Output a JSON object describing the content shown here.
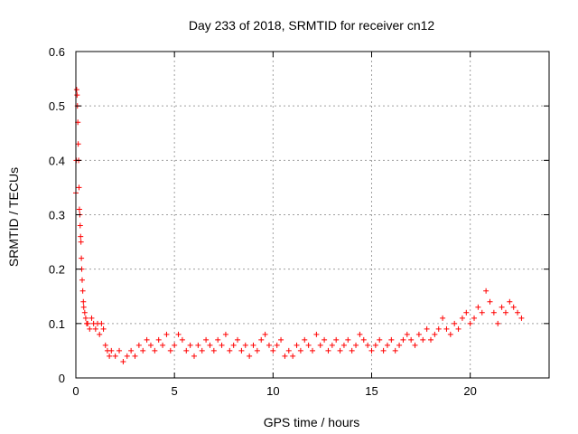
{
  "chart_data": {
    "type": "scatter",
    "title": "Day 233 of 2018, SRMTID for receiver cn12",
    "xlabel": "GPS time / hours",
    "ylabel": "SRMTID / TECUs",
    "xlim": [
      0,
      24
    ],
    "ylim": [
      0,
      0.6
    ],
    "x_ticks": [
      0,
      5,
      10,
      15,
      20
    ],
    "x_tick_labels": [
      "0",
      "5",
      "10",
      "15",
      "20"
    ],
    "y_ticks": [
      0,
      0.1,
      0.2,
      0.3,
      0.4,
      0.5,
      0.6
    ],
    "y_tick_labels": [
      "0",
      "0.1",
      "0.2",
      "0.3",
      "0.4",
      "0.5",
      "0.6"
    ],
    "grid": true,
    "marker": "+",
    "series_color": "#ff0000",
    "series": [
      {
        "name": "SRMTID",
        "points": [
          [
            0.0,
            0.34
          ],
          [
            0.02,
            0.4
          ],
          [
            0.04,
            0.53
          ],
          [
            0.06,
            0.52
          ],
          [
            0.08,
            0.5
          ],
          [
            0.1,
            0.47
          ],
          [
            0.12,
            0.43
          ],
          [
            0.14,
            0.4
          ],
          [
            0.16,
            0.35
          ],
          [
            0.18,
            0.31
          ],
          [
            0.2,
            0.3
          ],
          [
            0.22,
            0.28
          ],
          [
            0.24,
            0.26
          ],
          [
            0.26,
            0.25
          ],
          [
            0.28,
            0.22
          ],
          [
            0.3,
            0.2
          ],
          [
            0.32,
            0.18
          ],
          [
            0.35,
            0.16
          ],
          [
            0.38,
            0.14
          ],
          [
            0.4,
            0.13
          ],
          [
            0.45,
            0.12
          ],
          [
            0.5,
            0.11
          ],
          [
            0.55,
            0.1
          ],
          [
            0.6,
            0.1
          ],
          [
            0.7,
            0.09
          ],
          [
            0.8,
            0.11
          ],
          [
            0.9,
            0.1
          ],
          [
            1.0,
            0.09
          ],
          [
            1.1,
            0.1
          ],
          [
            1.2,
            0.08
          ],
          [
            1.3,
            0.1
          ],
          [
            1.4,
            0.09
          ],
          [
            1.5,
            0.06
          ],
          [
            1.6,
            0.05
          ],
          [
            1.7,
            0.04
          ],
          [
            1.8,
            0.05
          ],
          [
            2.0,
            0.04
          ],
          [
            2.2,
            0.05
          ],
          [
            2.4,
            0.03
          ],
          [
            2.6,
            0.04
          ],
          [
            2.8,
            0.05
          ],
          [
            3.0,
            0.04
          ],
          [
            3.2,
            0.06
          ],
          [
            3.4,
            0.05
          ],
          [
            3.6,
            0.07
          ],
          [
            3.8,
            0.06
          ],
          [
            4.0,
            0.05
          ],
          [
            4.2,
            0.07
          ],
          [
            4.4,
            0.06
          ],
          [
            4.6,
            0.08
          ],
          [
            4.8,
            0.05
          ],
          [
            5.0,
            0.06
          ],
          [
            5.2,
            0.08
          ],
          [
            5.4,
            0.07
          ],
          [
            5.6,
            0.05
          ],
          [
            5.8,
            0.06
          ],
          [
            6.0,
            0.04
          ],
          [
            6.2,
            0.06
          ],
          [
            6.4,
            0.05
          ],
          [
            6.6,
            0.07
          ],
          [
            6.8,
            0.06
          ],
          [
            7.0,
            0.05
          ],
          [
            7.2,
            0.07
          ],
          [
            7.4,
            0.06
          ],
          [
            7.6,
            0.08
          ],
          [
            7.8,
            0.05
          ],
          [
            8.0,
            0.06
          ],
          [
            8.2,
            0.07
          ],
          [
            8.4,
            0.05
          ],
          [
            8.6,
            0.06
          ],
          [
            8.8,
            0.04
          ],
          [
            9.0,
            0.06
          ],
          [
            9.2,
            0.05
          ],
          [
            9.4,
            0.07
          ],
          [
            9.6,
            0.08
          ],
          [
            9.8,
            0.06
          ],
          [
            10.0,
            0.05
          ],
          [
            10.2,
            0.06
          ],
          [
            10.4,
            0.07
          ],
          [
            10.6,
            0.04
          ],
          [
            10.8,
            0.05
          ],
          [
            11.0,
            0.04
          ],
          [
            11.2,
            0.06
          ],
          [
            11.4,
            0.05
          ],
          [
            11.6,
            0.07
          ],
          [
            11.8,
            0.06
          ],
          [
            12.0,
            0.05
          ],
          [
            12.2,
            0.08
          ],
          [
            12.4,
            0.06
          ],
          [
            12.6,
            0.07
          ],
          [
            12.8,
            0.05
          ],
          [
            13.0,
            0.06
          ],
          [
            13.2,
            0.07
          ],
          [
            13.4,
            0.05
          ],
          [
            13.6,
            0.06
          ],
          [
            13.8,
            0.07
          ],
          [
            14.0,
            0.05
          ],
          [
            14.2,
            0.06
          ],
          [
            14.4,
            0.08
          ],
          [
            14.6,
            0.07
          ],
          [
            14.8,
            0.06
          ],
          [
            15.0,
            0.05
          ],
          [
            15.2,
            0.06
          ],
          [
            15.4,
            0.07
          ],
          [
            15.6,
            0.05
          ],
          [
            15.8,
            0.06
          ],
          [
            16.0,
            0.07
          ],
          [
            16.2,
            0.05
          ],
          [
            16.4,
            0.06
          ],
          [
            16.6,
            0.07
          ],
          [
            16.8,
            0.08
          ],
          [
            17.0,
            0.07
          ],
          [
            17.2,
            0.06
          ],
          [
            17.4,
            0.08
          ],
          [
            17.6,
            0.07
          ],
          [
            17.8,
            0.09
          ],
          [
            18.0,
            0.07
          ],
          [
            18.2,
            0.08
          ],
          [
            18.4,
            0.09
          ],
          [
            18.6,
            0.11
          ],
          [
            18.8,
            0.09
          ],
          [
            19.0,
            0.08
          ],
          [
            19.2,
            0.1
          ],
          [
            19.4,
            0.09
          ],
          [
            19.6,
            0.11
          ],
          [
            19.8,
            0.12
          ],
          [
            20.0,
            0.1
          ],
          [
            20.2,
            0.11
          ],
          [
            20.4,
            0.13
          ],
          [
            20.6,
            0.12
          ],
          [
            20.8,
            0.16
          ],
          [
            21.0,
            0.14
          ],
          [
            21.2,
            0.12
          ],
          [
            21.4,
            0.1
          ],
          [
            21.6,
            0.13
          ],
          [
            21.8,
            0.12
          ],
          [
            22.0,
            0.14
          ],
          [
            22.2,
            0.13
          ],
          [
            22.4,
            0.12
          ],
          [
            22.6,
            0.11
          ]
        ]
      }
    ]
  }
}
